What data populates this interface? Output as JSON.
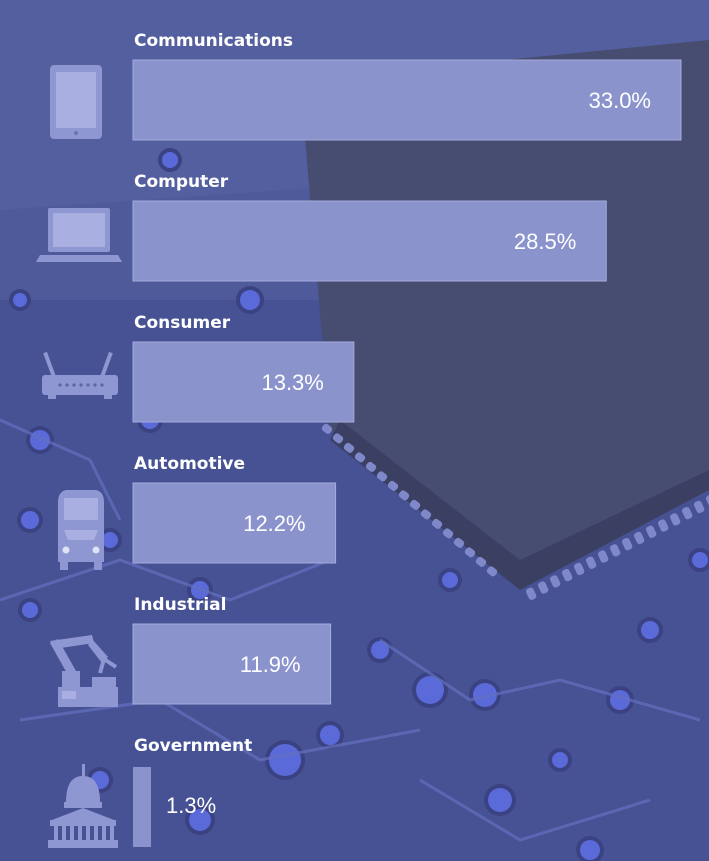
{
  "colors": {
    "background": "#4f5a9a",
    "board": "#3e4682",
    "chip": "#474d70",
    "bar": "#8b93cd",
    "bar_outline": "#a4abdc",
    "icon": "#8f97d2",
    "text": "#ffffff"
  },
  "chart_data": {
    "type": "bar",
    "orientation": "horizontal",
    "unit": "%",
    "categories": [
      "Communications",
      "Computer",
      "Consumer",
      "Automotive",
      "Industrial",
      "Government"
    ],
    "values": [
      33.0,
      28.5,
      13.3,
      12.2,
      11.9,
      1.3
    ],
    "value_labels": [
      "33.0%",
      "28.5%",
      "13.3%",
      "12.2%",
      "11.9%",
      "1.3%"
    ],
    "icons": [
      "tablet-icon",
      "laptop-icon",
      "router-icon",
      "car-icon",
      "robot-arm-icon",
      "capitol-building-icon"
    ],
    "grid": false,
    "legend": "none"
  }
}
